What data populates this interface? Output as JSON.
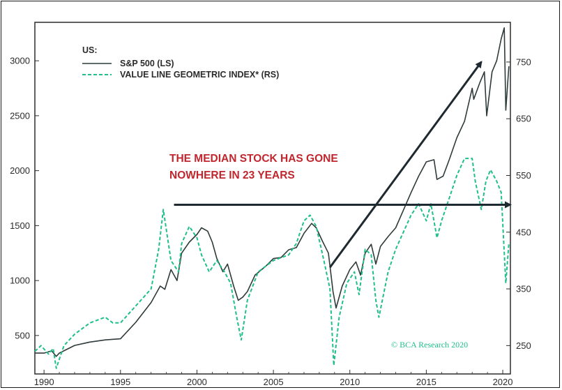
{
  "chart_data": {
    "type": "line",
    "title": "",
    "legend": {
      "title": "US:",
      "placement": "top-left",
      "entries": [
        {
          "label": "S&P 500 (LS)",
          "color": "#2f3a3a",
          "style": "solid"
        },
        {
          "label": "VALUE LINE GEOMETRIC INDEX* (RS)",
          "color": "#1fbf8a",
          "style": "dashed"
        }
      ]
    },
    "x_axis": {
      "range": [
        1989.4,
        2020.5
      ],
      "ticks": [
        1990,
        1995,
        2000,
        2005,
        2010,
        2015,
        2020
      ]
    },
    "y_left": {
      "range": [
        150,
        3350
      ],
      "ticks": [
        500,
        1000,
        1500,
        2000,
        2500,
        3000
      ]
    },
    "y_right": {
      "range": [
        200,
        820
      ],
      "ticks": [
        250,
        350,
        450,
        550,
        650,
        750
      ]
    },
    "series": [
      {
        "name": "S&P 500 (LS)",
        "axis": "left",
        "color": "#2f3a3a",
        "x": [
          1989.4,
          1990.0,
          1990.5,
          1990.8,
          1991.0,
          1992.0,
          1993.0,
          1994.0,
          1995.0,
          1996.0,
          1997.0,
          1997.6,
          1997.9,
          1998.3,
          1998.7,
          1999.0,
          1999.5,
          2000.0,
          2000.3,
          2000.7,
          2001.0,
          2001.3,
          2001.7,
          2002.0,
          2002.4,
          2002.7,
          2003.0,
          2003.3,
          2003.8,
          2004.5,
          2005.0,
          2005.5,
          2006.0,
          2006.5,
          2007.0,
          2007.5,
          2007.8,
          2008.2,
          2008.6,
          2008.9,
          2009.1,
          2009.5,
          2010.0,
          2010.4,
          2010.7,
          2011.0,
          2011.4,
          2011.7,
          2012.0,
          2012.5,
          2013.0,
          2013.5,
          2014.0,
          2014.5,
          2015.0,
          2015.5,
          2015.7,
          2016.1,
          2016.5,
          2017.0,
          2017.5,
          2018.0,
          2018.1,
          2018.5,
          2018.8,
          2018.95,
          2019.3,
          2019.6,
          2019.9,
          2020.1,
          2020.2,
          2020.4
        ],
        "values": [
          340,
          340,
          360,
          310,
          340,
          410,
          440,
          460,
          470,
          620,
          800,
          950,
          920,
          1100,
          1000,
          1250,
          1350,
          1420,
          1480,
          1450,
          1350,
          1200,
          1080,
          1150,
          950,
          820,
          850,
          900,
          1050,
          1130,
          1200,
          1210,
          1280,
          1300,
          1430,
          1520,
          1480,
          1360,
          1250,
          900,
          750,
          950,
          1100,
          1170,
          1050,
          1250,
          1330,
          1150,
          1310,
          1400,
          1480,
          1640,
          1800,
          1950,
          2080,
          2100,
          1920,
          1950,
          2100,
          2300,
          2450,
          2750,
          2650,
          2800,
          2900,
          2500,
          2900,
          3000,
          3200,
          3300,
          2550,
          2950
        ]
      },
      {
        "name": "VALUE LINE GEOMETRIC INDEX* (RS)",
        "axis": "right",
        "color": "#1fbf8a",
        "x": [
          1989.4,
          1989.8,
          1990.3,
          1990.6,
          1990.8,
          1991.3,
          1992.0,
          1993.0,
          1994.0,
          1994.5,
          1995.0,
          1996.0,
          1997.0,
          1997.5,
          1997.8,
          1998.3,
          1998.8,
          1999.0,
          1999.5,
          2000.0,
          2000.3,
          2000.8,
          2001.3,
          2001.8,
          2002.2,
          2002.6,
          2002.9,
          2003.3,
          2004.0,
          2004.5,
          2005.0,
          2006.0,
          2006.5,
          2007.0,
          2007.4,
          2007.8,
          2008.3,
          2008.7,
          2008.95,
          2009.3,
          2009.8,
          2010.3,
          2010.6,
          2011.0,
          2011.4,
          2011.7,
          2011.9,
          2012.5,
          2013.0,
          2013.5,
          2014.0,
          2014.5,
          2015.0,
          2015.3,
          2015.7,
          2016.0,
          2016.5,
          2017.0,
          2017.5,
          2018.0,
          2018.2,
          2018.6,
          2018.9,
          2019.2,
          2019.6,
          2019.9,
          2020.2,
          2020.4
        ],
        "values": [
          240,
          250,
          235,
          245,
          210,
          250,
          270,
          290,
          300,
          290,
          290,
          320,
          350,
          420,
          490,
          400,
          380,
          430,
          460,
          440,
          410,
          380,
          400,
          380,
          360,
          300,
          260,
          330,
          380,
          390,
          400,
          410,
          430,
          470,
          480,
          460,
          400,
          350,
          215,
          300,
          360,
          380,
          340,
          420,
          410,
          330,
          300,
          380,
          420,
          450,
          480,
          500,
          470,
          500,
          440,
          470,
          510,
          550,
          580,
          580,
          540,
          490,
          540,
          560,
          540,
          520,
          360,
          430
        ]
      }
    ],
    "annotations": [
      {
        "text_lines": [
          "THE MEDIAN STOCK HAS GONE",
          "NOWHERE IN 23 YEARS"
        ],
        "color": "#c0262d"
      }
    ],
    "arrows": [
      {
        "kind": "horizontal",
        "from": {
          "x": 1998.5,
          "y_left": 1690
        },
        "to": {
          "x": 2020.5,
          "y_left": 1690
        }
      },
      {
        "kind": "diagonal",
        "from": {
          "x": 2008.7,
          "y_left": 1120
        },
        "to": {
          "x": 2018.6,
          "y_left": 2990
        }
      }
    ],
    "credit": "© BCA Research 2020"
  }
}
